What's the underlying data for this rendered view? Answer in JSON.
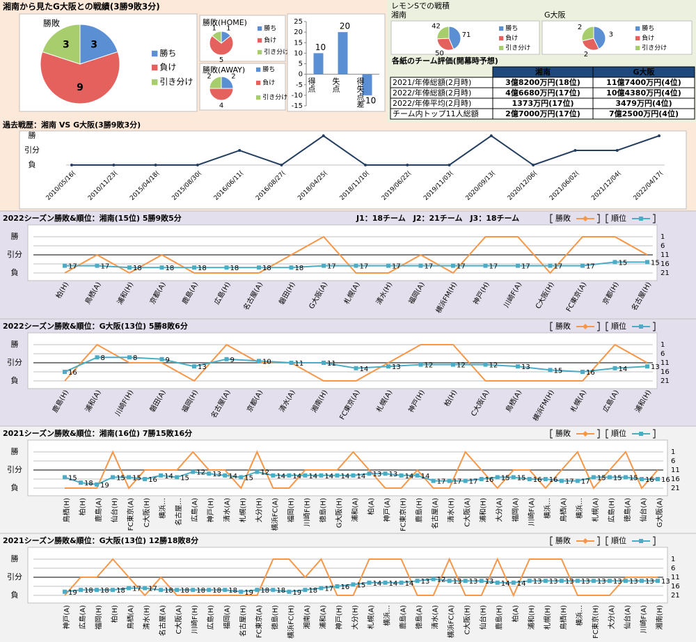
{
  "top_title": "湘南から見たG大阪との戦績(3勝9敗3分)",
  "lemon_title": "レモンSでの戦積",
  "table": {
    "title": "各紙のチーム評価(開幕時予想)",
    "header": [
      "湘南",
      "G大阪"
    ],
    "rows": [
      [
        "2021/年俸総額(2月時)",
        "3億8200万円(18位)",
        "11億7400万円(4位)"
      ],
      [
        "2022/年俸総額(2月時)",
        "4億6680万円(17位)",
        "10億4380万円(4位)"
      ],
      [
        "2022/年俸平均(2月時)",
        "1373万円(17位)",
        "3479万円(4位)"
      ],
      [
        "チーム内トップ11人総額",
        "2億7000万円(17位)",
        "7億2500万円(4位)"
      ]
    ]
  },
  "chart_data": [
    {
      "type": "pie",
      "title": "勝敗",
      "categories": [
        "勝ち",
        "負け",
        "引き分け"
      ],
      "values": [
        3,
        9,
        3
      ],
      "colors": [
        "#5b8fd3",
        "#e4615e",
        "#a8cd6c"
      ]
    },
    {
      "type": "pie",
      "title": "勝敗(HOME)",
      "categories": [
        "勝ち",
        "負け",
        "引き分け"
      ],
      "values": [
        1,
        5,
        1
      ],
      "colors": [
        "#5b8fd3",
        "#e4615e",
        "#a8cd6c"
      ]
    },
    {
      "type": "pie",
      "title": "勝敗(AWAY)",
      "categories": [
        "勝ち",
        "負け",
        "引き分け"
      ],
      "values": [
        2,
        4,
        2
      ],
      "colors": [
        "#5b8fd3",
        "#e4615e",
        "#a8cd6c"
      ]
    },
    {
      "type": "bar",
      "categories": [
        "得点",
        "失点",
        "得失点差"
      ],
      "values": [
        10,
        20,
        -10
      ],
      "color": "#5b8fd3",
      "ylim": [
        -15,
        25
      ],
      "yticks": [
        -15,
        -10,
        -5,
        0,
        5,
        10,
        15,
        20,
        25
      ]
    },
    {
      "type": "pie",
      "title": "湘南",
      "categories": [
        "勝ち",
        "負け",
        "引き分け"
      ],
      "values": [
        71,
        50,
        42
      ],
      "colors": [
        "#5b8fd3",
        "#e4615e",
        "#a8cd6c"
      ]
    },
    {
      "type": "pie",
      "title": "G大阪",
      "categories": [
        "勝ち",
        "負け",
        "引き分け"
      ],
      "values": [
        3,
        2,
        2
      ],
      "colors": [
        "#5b8fd3",
        "#e4615e",
        "#a8cd6c"
      ]
    },
    {
      "type": "line",
      "title": "過去戦歴：湘南 VS G大阪(3勝9敗3分)",
      "categories": [
        "2010/05/16(",
        "2010/11/23(",
        "2015/04/18(",
        "2015/08/30(",
        "2016/06/11(",
        "2016/08/27(",
        "2018/04/25(",
        "2018/11/10(",
        "2019/06/22(",
        "2019/11/03(",
        "2020/09/13(",
        "2020/12/06(",
        "2021/06/02(",
        "2021/12/04(",
        "2022/04/17("
      ],
      "values": [
        0,
        0,
        0,
        0,
        1,
        0,
        2,
        0,
        0,
        0,
        2,
        0,
        1,
        1,
        2
      ],
      "color": "#243f60",
      "ylim": [
        0,
        2
      ],
      "yticks": [
        {
          "value": 0,
          "label": "負"
        },
        {
          "value": 1,
          "label": "引分"
        },
        {
          "value": 2,
          "label": "勝"
        }
      ]
    },
    {
      "type": "combo",
      "title": "2022シーズン勝敗&順位：湘南(15位) 5勝9敗5分",
      "annotation": "J1：18チーム　J2：21チーム　J3：18チーム",
      "categories": [
        "柏(H)",
        "鳥栖(A)",
        "浦和(H)",
        "京都(A)",
        "鹿島(A)",
        "広島(H)",
        "名古屋(A)",
        "磐田(H)",
        "G大阪(A)",
        "札幌(A)",
        "清水(H)",
        "福岡(A)",
        "横浜FM(H)",
        "神戸(H)",
        "川崎F(A)",
        "C大阪(H)",
        "FC東京(A)",
        "京都(H)",
        "名古屋(H)"
      ],
      "series": [
        {
          "name": "勝敗",
          "color": "#f79646",
          "values": [
            0,
            1,
            0,
            1,
            0,
            0,
            0,
            1,
            2,
            0,
            0,
            1,
            0,
            2,
            2,
            0,
            2,
            2,
            1
          ]
        },
        {
          "name": "順位",
          "color": "#4bacc6",
          "axis": "y2",
          "values": [
            17,
            17,
            18,
            18,
            18,
            18,
            18,
            18,
            17,
            17,
            17,
            17,
            17,
            17,
            17,
            17,
            17,
            15,
            15
          ]
        }
      ],
      "ylim": [
        0,
        2
      ],
      "yticks": [
        {
          "value": 0,
          "label": "負"
        },
        {
          "value": 1,
          "label": "引分"
        },
        {
          "value": 2,
          "label": "勝"
        }
      ],
      "y2lim": [
        1,
        21
      ],
      "y2ticks": [
        1,
        6,
        11,
        16,
        21
      ],
      "y2_inverted": true,
      "grid": true
    },
    {
      "type": "combo",
      "title": "2022シーズン勝敗&順位：G大阪(13位) 5勝8敗6分",
      "categories": [
        "鹿島(H)",
        "浦和(A)",
        "川崎F(H)",
        "磐田(A)",
        "福岡(H)",
        "名古屋(A)",
        "京都(A)",
        "清水(A)",
        "湘南(H)",
        "FC東京(A)",
        "札幌(A)",
        "神戸(H)",
        "柏(H)",
        "C大阪(A)",
        "鳥栖(A)",
        "横浜FM(H)",
        "札幌(A)",
        "広島(A)",
        "浦和(H)"
      ],
      "series": [
        {
          "name": "勝敗",
          "color": "#f79646",
          "values": [
            0,
            2,
            1,
            1,
            0,
            2,
            1,
            1,
            0,
            0,
            1,
            2,
            2,
            0,
            0,
            0,
            0,
            2,
            1
          ]
        },
        {
          "name": "順位",
          "color": "#4bacc6",
          "axis": "y2",
          "values": [
            16,
            8,
            8,
            9,
            13,
            9,
            10,
            11,
            11,
            14,
            13,
            12,
            12,
            12,
            13,
            15,
            16,
            14,
            13
          ]
        }
      ],
      "ylim": [
        0,
        2
      ],
      "yticks": [
        {
          "value": 0,
          "label": "負"
        },
        {
          "value": 1,
          "label": "引分"
        },
        {
          "value": 2,
          "label": "勝"
        }
      ],
      "y2lim": [
        1,
        21
      ],
      "y2ticks": [
        1,
        6,
        11,
        16,
        21
      ],
      "y2_inverted": true,
      "grid": true
    },
    {
      "type": "combo",
      "title": "2021シーズン勝敗&順位：湘南(16位) 7勝15敗16分",
      "categories": [
        "鳥栖(H)",
        "柏(H)",
        "鹿島(A)",
        "仙台(H)",
        "FC東京(A)",
        "C大阪(H)",
        "横浜…",
        "名古屋…",
        "広島(A)",
        "神戸(H)",
        "清水(A)",
        "札幌(H)",
        "大分(H)",
        "横浜FC(A)",
        "福岡(H)",
        "川崎F(H)",
        "徳島(H)",
        "G大阪(H)",
        "浦和(A)",
        "柏(A)",
        "神戸(A)",
        "FC東京(H)",
        "鹿島(H)",
        "名古屋(A)",
        "清水(H)",
        "C大阪(A)",
        "浦和(H)",
        "大分(A)",
        "福岡(A)",
        "川崎F(A)",
        "横浜…",
        "鳥栖(A)",
        "横浜…",
        "札幌(A)",
        "広島(H)",
        "徳島(A)",
        "仙台(A)",
        "G大阪(A)"
      ],
      "series": [
        {
          "name": "勝敗",
          "color": "#f79646",
          "values": [
            0,
            0,
            0,
            2,
            0,
            1,
            1,
            1,
            2,
            1,
            1,
            0,
            2,
            0,
            0,
            1,
            1,
            1,
            2,
            1,
            0,
            0,
            1,
            0,
            0,
            2,
            1,
            0,
            1,
            1,
            0,
            1,
            2,
            0,
            1,
            2,
            0,
            1
          ]
        },
        {
          "name": "順位",
          "color": "#4bacc6",
          "axis": "y2",
          "values": [
            15,
            18,
            19,
            15,
            15,
            16,
            14,
            15,
            12,
            13,
            14,
            15,
            12,
            14,
            14,
            14,
            14,
            14,
            14,
            13,
            13,
            14,
            14,
            17,
            17,
            17,
            16,
            15,
            15,
            16,
            16,
            17,
            17,
            15,
            15,
            15,
            16,
            16
          ]
        }
      ],
      "ylim": [
        0,
        2
      ],
      "yticks": [
        {
          "value": 0,
          "label": "負"
        },
        {
          "value": 1,
          "label": "引分"
        },
        {
          "value": 2,
          "label": "勝"
        }
      ],
      "y2lim": [
        1,
        21
      ],
      "y2ticks": [
        1,
        6,
        11,
        16,
        21
      ],
      "y2_inverted": true,
      "grid": true
    },
    {
      "type": "combo",
      "title": "2021シーズン勝敗&順位：G大阪(13位) 12勝18敗8分",
      "categories": [
        "神戸(A)",
        "広島(A)",
        "福岡(H)",
        "柏(H)",
        "鳥栖(A)",
        "清水(H)",
        "名古屋(A)",
        "C大阪(A)",
        "川崎F(H)",
        "広島(H)",
        "福岡(A)",
        "名古屋(H)",
        "FC東京(A)",
        "徳島(H)",
        "横浜FC(H)",
        "湘南(A)",
        "浦和(A)",
        "神戸(H)",
        "大分(H)",
        "札幌(A)",
        "横浜…",
        "鹿島(A)",
        "徳島(A)",
        "清水(A)",
        "横浜FC(A)",
        "C大阪(H)",
        "仙台(H)",
        "鹿島(H)",
        "柏(A)",
        "浦和(H)",
        "札幌(H)",
        "鳥栖(H)",
        "横浜…",
        "FC東京(H)",
        "大分(A)",
        "仙台(A)",
        "川崎F(A)",
        "湘南(H)"
      ],
      "series": [
        {
          "name": "勝敗",
          "color": "#f79646",
          "values": [
            0,
            1,
            1,
            2,
            1,
            0,
            1,
            0,
            0,
            0,
            0,
            0,
            0,
            2,
            2,
            1,
            2,
            0,
            0,
            2,
            2,
            2,
            0,
            0,
            2,
            0,
            0,
            2,
            0,
            2,
            2,
            2,
            0,
            0,
            0,
            1,
            1,
            1
          ]
        },
        {
          "name": "順位",
          "color": "#4bacc6",
          "axis": "y2",
          "values": [
            19,
            18,
            18,
            18,
            17,
            17,
            18,
            18,
            18,
            18,
            18,
            19,
            18,
            18,
            19,
            18,
            17,
            16,
            15,
            14,
            14,
            14,
            13,
            12,
            13,
            13,
            13,
            14,
            14,
            13,
            13,
            13,
            13,
            13,
            13,
            13,
            13,
            13
          ]
        }
      ],
      "ylim": [
        0,
        2
      ],
      "yticks": [
        {
          "value": 0,
          "label": "負"
        },
        {
          "value": 1,
          "label": "引分"
        },
        {
          "value": 2,
          "label": "勝"
        }
      ],
      "y2lim": [
        1,
        21
      ],
      "y2ticks": [
        1,
        6,
        11,
        16,
        21
      ],
      "y2_inverted": true,
      "grid": true
    }
  ]
}
